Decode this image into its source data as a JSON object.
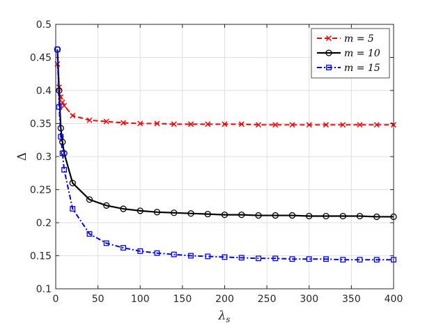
{
  "chart_data": {
    "type": "line",
    "title": "",
    "xlabel": "λs",
    "xlabel_main": "λ",
    "xlabel_sub": "s",
    "ylabel": "Δ",
    "xlim": [
      0,
      400
    ],
    "ylim": [
      0.1,
      0.5
    ],
    "xticks": [
      0,
      50,
      100,
      150,
      200,
      250,
      300,
      350,
      400
    ],
    "xtick_labels": [
      "0",
      "50",
      "100",
      "150",
      "200",
      "250",
      "300",
      "350",
      "400"
    ],
    "yticks": [
      0.1,
      0.15,
      0.2,
      0.25,
      0.3,
      0.35,
      0.4,
      0.45,
      0.5
    ],
    "ytick_labels": [
      "0.1",
      "0.15",
      "0.2",
      "0.25",
      "0.3",
      "0.35",
      "0.4",
      "0.45",
      "0.5"
    ],
    "grid": true,
    "legend_position": "top-right",
    "x": [
      2,
      4,
      6,
      8,
      10,
      20,
      40,
      60,
      80,
      100,
      120,
      140,
      160,
      180,
      200,
      220,
      240,
      260,
      280,
      300,
      320,
      340,
      360,
      380,
      400
    ],
    "series": [
      {
        "name": "m = 5",
        "color": "#ff0000",
        "dash": "dashed",
        "marker": "x",
        "values": [
          0.44,
          0.405,
          0.39,
          0.382,
          0.377,
          0.362,
          0.355,
          0.353,
          0.351,
          0.35,
          0.35,
          0.349,
          0.349,
          0.349,
          0.349,
          0.349,
          0.348,
          0.348,
          0.348,
          0.348,
          0.348,
          0.348,
          0.348,
          0.348,
          0.348
        ]
      },
      {
        "name": "m = 10",
        "color": "#000000",
        "dash": "solid",
        "marker": "circle",
        "values": [
          0.462,
          0.4,
          0.343,
          0.322,
          0.305,
          0.26,
          0.235,
          0.226,
          0.221,
          0.218,
          0.216,
          0.215,
          0.214,
          0.213,
          0.212,
          0.212,
          0.211,
          0.211,
          0.211,
          0.21,
          0.21,
          0.21,
          0.21,
          0.209,
          0.209
        ]
      },
      {
        "name": "m = 15",
        "color": "#0000ff",
        "dash": "dashdot",
        "marker": "square",
        "values": [
          0.462,
          0.375,
          0.33,
          0.305,
          0.28,
          0.221,
          0.183,
          0.169,
          0.162,
          0.157,
          0.154,
          0.152,
          0.15,
          0.149,
          0.148,
          0.147,
          0.146,
          0.146,
          0.145,
          0.145,
          0.145,
          0.144,
          0.144,
          0.144,
          0.144
        ]
      }
    ]
  }
}
